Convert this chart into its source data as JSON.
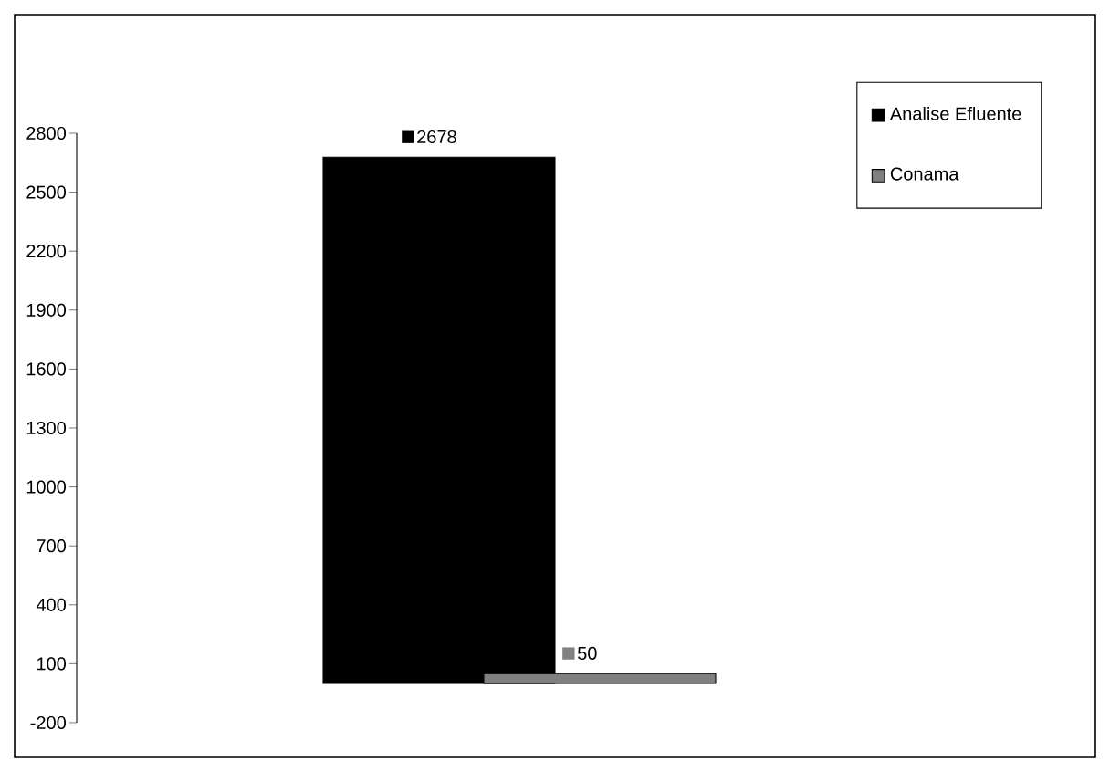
{
  "chart_data": {
    "type": "bar",
    "categories": [
      null
    ],
    "series": [
      {
        "name": "Analise Efluente",
        "color": "#000000",
        "values": [
          2678
        ],
        "value_labels": [
          "2678"
        ]
      },
      {
        "name": "Conama",
        "color": "#808080",
        "values": [
          50
        ],
        "value_labels": [
          "50"
        ]
      }
    ],
    "ylim": [
      -200,
      2800
    ],
    "yticks": [
      -200,
      100,
      400,
      700,
      1000,
      1300,
      1600,
      1900,
      2200,
      2500,
      2800
    ],
    "grid": false,
    "legend": "top right"
  }
}
